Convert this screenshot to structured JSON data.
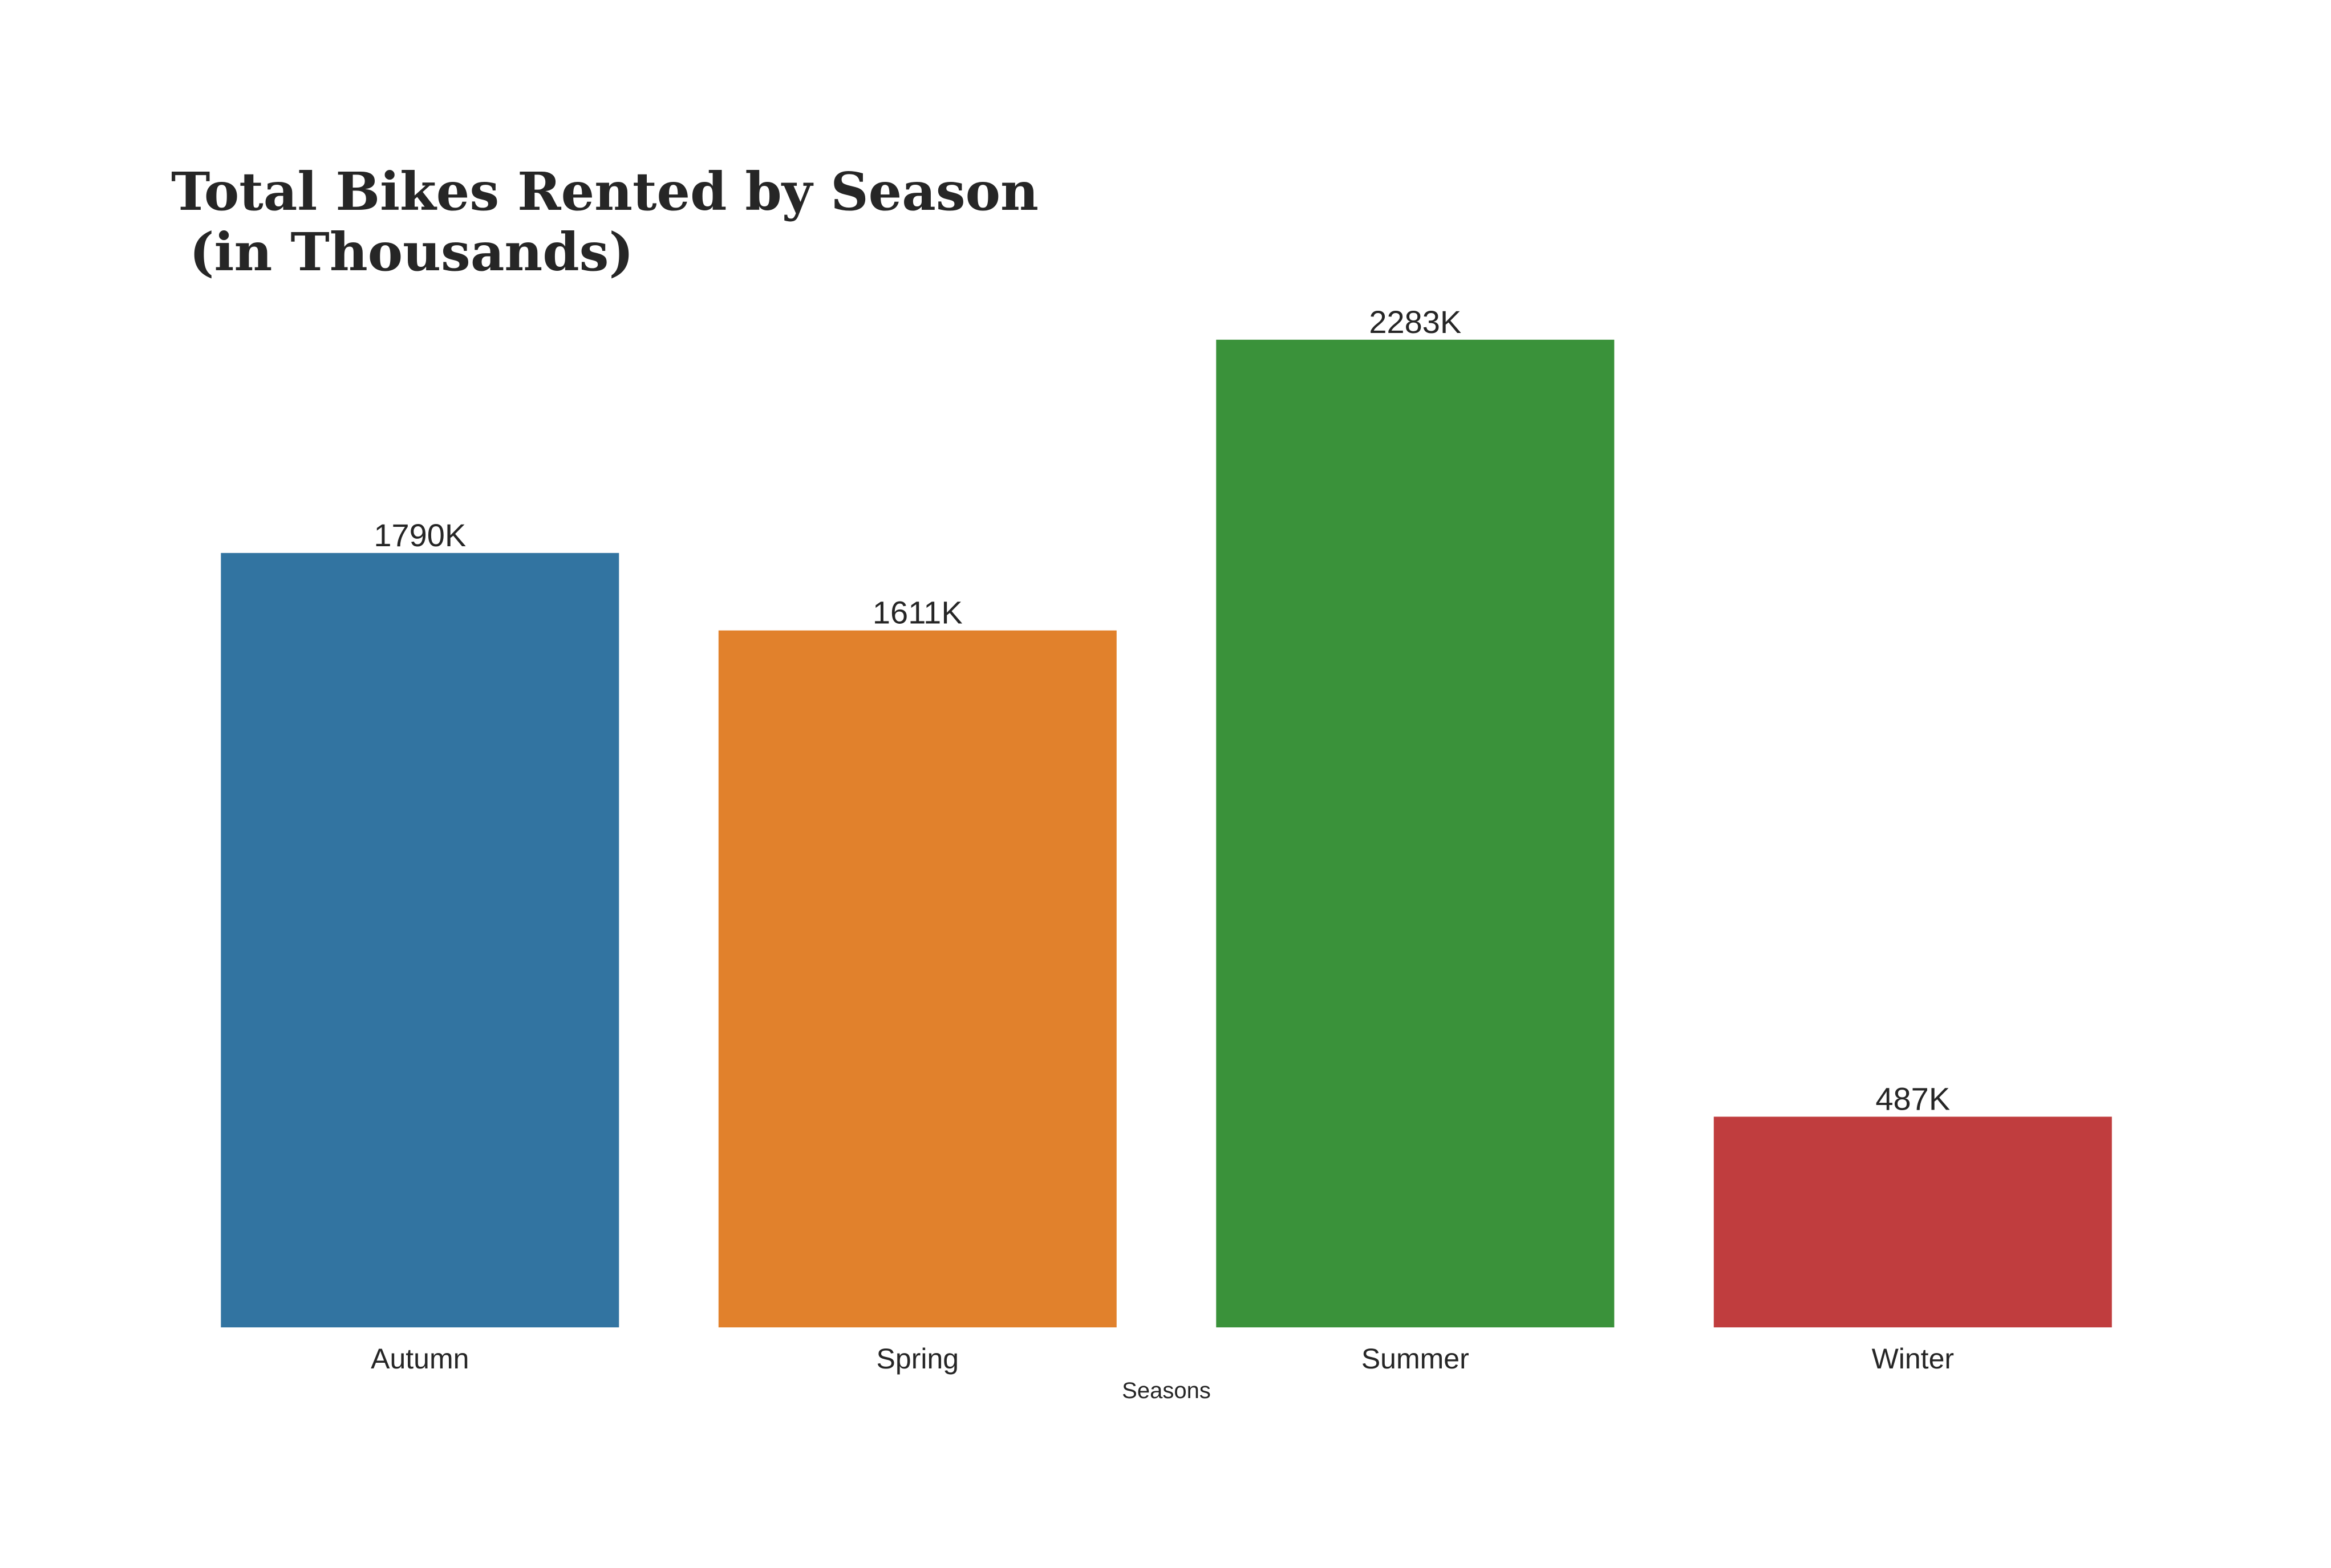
{
  "chart_data": {
    "type": "bar",
    "title_lines": [
      "Total Bikes Rented by Season",
      " (in Thousands)"
    ],
    "xlabel": "Seasons",
    "ylabel": "",
    "categories": [
      "Autumn",
      "Spring",
      "Summer",
      "Winter"
    ],
    "values": [
      1790,
      1611,
      2283,
      487
    ],
    "data_labels": [
      "1790K",
      "1611K",
      "2283K",
      "487K"
    ],
    "colors": [
      "#3274A1",
      "#E1812C",
      "#3A923A",
      "#C03D3E"
    ],
    "ylim": [
      0,
      2400
    ],
    "grid": false,
    "legend": "none"
  }
}
